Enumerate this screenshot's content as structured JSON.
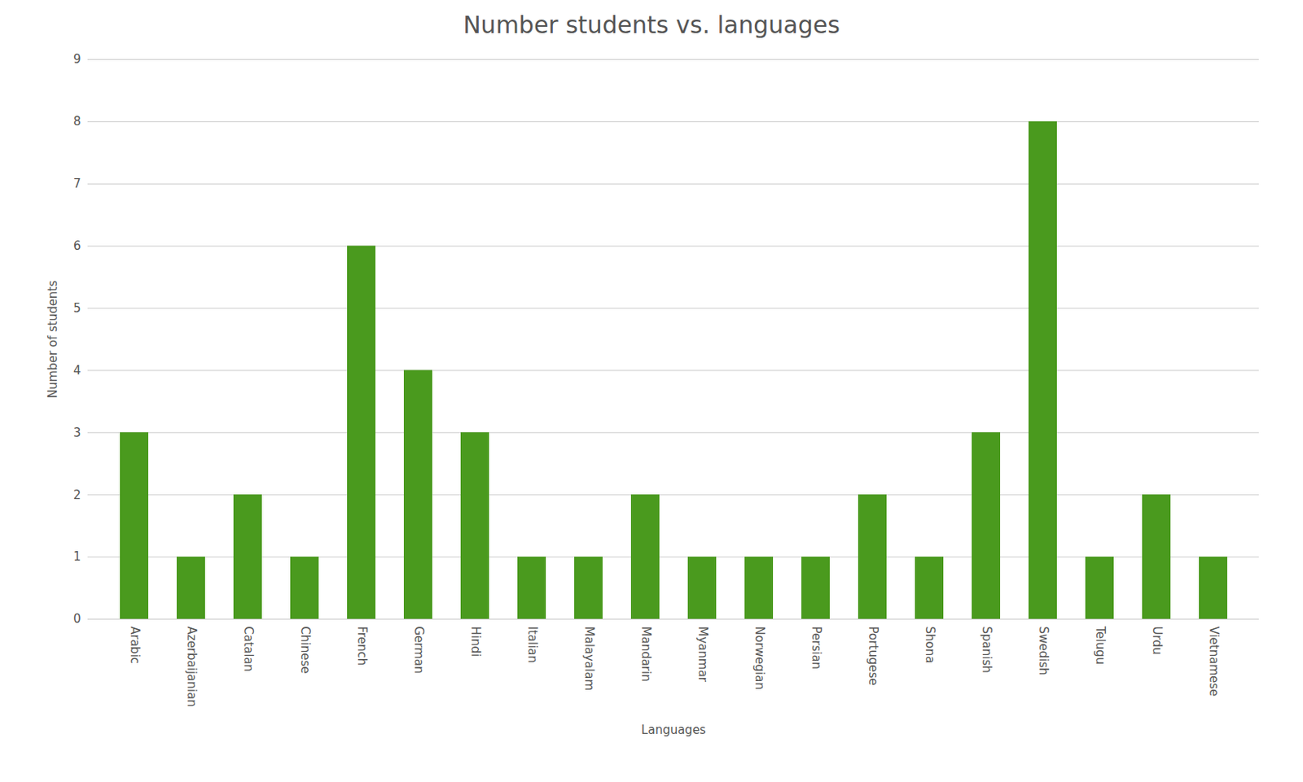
{
  "chart_data": {
    "type": "bar",
    "title": "Number students vs. languages",
    "xlabel": "Languages",
    "ylabel": "Number of students",
    "categories": [
      "Arabic",
      "Azerbaijanian",
      "Catalan",
      "Chinese",
      "French",
      "German",
      "Hindi",
      "Italian",
      "Malayalam",
      "Mandarin",
      "Myanmar",
      "Norwegian",
      "Persian",
      "Portugese",
      "Shona",
      "Spanish",
      "Swedish",
      "Telugu",
      "Urdu",
      "Vietnamese"
    ],
    "values": [
      3,
      1,
      2,
      1,
      6,
      4,
      3,
      1,
      1,
      2,
      1,
      1,
      1,
      2,
      1,
      3,
      8,
      1,
      2,
      1
    ],
    "color": "#4a9a1e",
    "ylim": [
      0,
      9
    ],
    "yticks": [
      0,
      1,
      2,
      3,
      4,
      5,
      6,
      7,
      8,
      9
    ],
    "grid": true
  }
}
